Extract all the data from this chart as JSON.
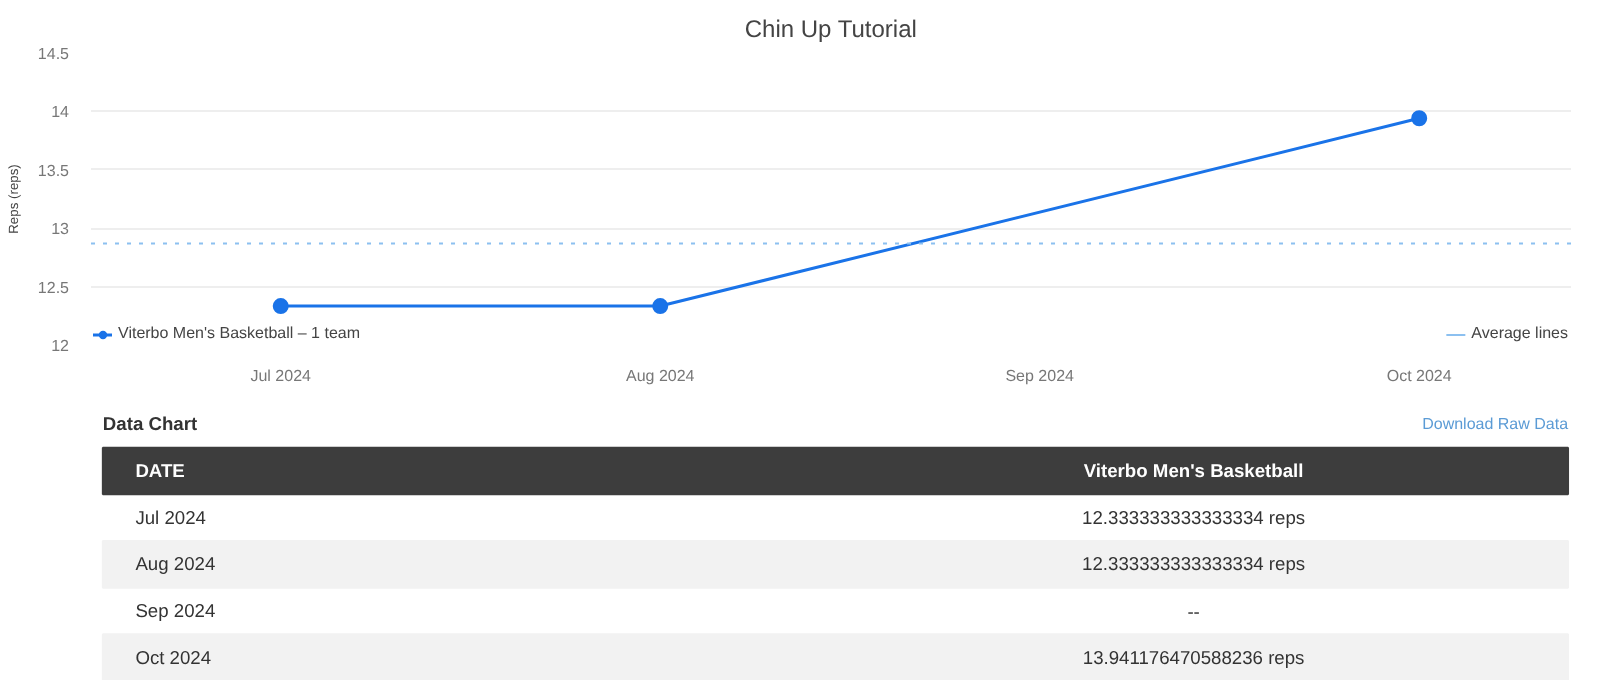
{
  "chart_data": {
    "type": "line",
    "title": "Chin Up Tutorial",
    "ylabel": "Reps (reps)",
    "categories": [
      "Jul 2024",
      "Aug 2024",
      "Sep 2024",
      "Oct 2024"
    ],
    "series": [
      {
        "name": "Viterbo Men's Basketball – 1 team",
        "color": "#1a73e8",
        "values": [
          12.333333333333334,
          12.333333333333334,
          null,
          13.941176470588236
        ]
      }
    ],
    "ylim": [
      12,
      14.5
    ],
    "yticks": [
      12,
      12.5,
      13,
      13.5,
      14,
      14.5
    ],
    "grid": "y",
    "marker": "circle",
    "legend": "bottom",
    "ref_lines": [
      {
        "axis": "y",
        "value": 12.87,
        "label": "Average lines",
        "color": "#8cc0f0",
        "line_style": "dotted"
      }
    ],
    "annotations": [
      "Data Chart",
      "Download Raw Data",
      "DATE",
      "Viterbo Men's Basketball",
      "12.333333333333334 reps",
      "12.333333333333334 reps",
      "--",
      "13.941176470588236 reps"
    ]
  }
}
